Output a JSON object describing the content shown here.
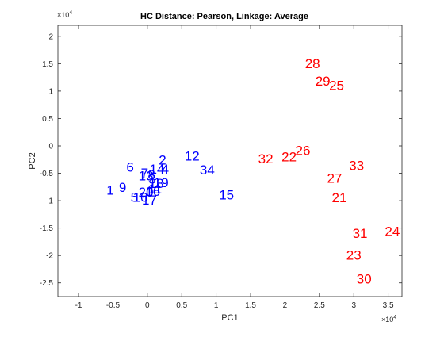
{
  "chart_data": {
    "type": "scatter",
    "title": "HC Distance: Pearson, Linkage: Average",
    "xlabel": "PC1",
    "ylabel": "PC2",
    "x_exponent": "×10",
    "x_exponent_power": "4",
    "y_exponent": "×10",
    "y_exponent_power": "4",
    "xlim": [
      -1.3,
      3.7
    ],
    "ylim": [
      -2.75,
      2.2
    ],
    "xticks": [
      -1,
      -0.5,
      0,
      0.5,
      1,
      1.5,
      2,
      2.5,
      3,
      3.5
    ],
    "xtick_labels": [
      "-1",
      "-0.5",
      "0",
      "0.5",
      "1",
      "1.5",
      "2",
      "2.5",
      "3",
      "3.5"
    ],
    "yticks": [
      -2.5,
      -2,
      -1.5,
      -1,
      -0.5,
      0,
      0.5,
      1,
      1.5,
      2
    ],
    "ytick_labels": [
      "-2.5",
      "-2",
      "-1.5",
      "-1",
      "-0.5",
      "0",
      "0.5",
      "1",
      "1.5",
      "2"
    ],
    "grid": false,
    "series": [
      {
        "color": "#0000ff",
        "points": [
          {
            "label": "1",
            "x": -0.54,
            "y": -0.81
          },
          {
            "label": "9",
            "x": -0.36,
            "y": -0.76
          },
          {
            "label": "6",
            "x": -0.25,
            "y": -0.39
          },
          {
            "label": "5",
            "x": -0.19,
            "y": -0.94
          },
          {
            "label": "10",
            "x": -0.1,
            "y": -0.94
          },
          {
            "label": "20",
            "x": -0.02,
            "y": -0.85
          },
          {
            "label": "17",
            "x": 0.03,
            "y": -0.99
          },
          {
            "label": "13",
            "x": -0.02,
            "y": -0.55
          },
          {
            "label": "7",
            "x": -0.04,
            "y": -0.5
          },
          {
            "label": "8",
            "x": 0.06,
            "y": -0.53
          },
          {
            "label": "3",
            "x": 0.07,
            "y": -0.61
          },
          {
            "label": "16",
            "x": 0.08,
            "y": -0.83
          },
          {
            "label": "11",
            "x": 0.11,
            "y": -0.79
          },
          {
            "label": "18",
            "x": 0.13,
            "y": -0.69
          },
          {
            "label": "14",
            "x": 0.14,
            "y": -0.43
          },
          {
            "label": "19",
            "x": 0.2,
            "y": -0.67
          },
          {
            "label": "2",
            "x": 0.22,
            "y": -0.26
          },
          {
            "label": "4",
            "x": 0.26,
            "y": -0.43
          },
          {
            "label": "12",
            "x": 0.65,
            "y": -0.19
          },
          {
            "label": "34",
            "x": 0.87,
            "y": -0.44
          },
          {
            "label": "15",
            "x": 1.15,
            "y": -0.9
          }
        ]
      },
      {
        "color": "#ff0000",
        "points": [
          {
            "label": "28",
            "x": 2.4,
            "y": 1.5
          },
          {
            "label": "29",
            "x": 2.55,
            "y": 1.18
          },
          {
            "label": "25",
            "x": 2.75,
            "y": 1.1
          },
          {
            "label": "26",
            "x": 2.26,
            "y": -0.09
          },
          {
            "label": "22",
            "x": 2.06,
            "y": -0.2
          },
          {
            "label": "32",
            "x": 1.72,
            "y": -0.24
          },
          {
            "label": "33",
            "x": 3.04,
            "y": -0.36
          },
          {
            "label": "27",
            "x": 2.72,
            "y": -0.59
          },
          {
            "label": "21",
            "x": 2.79,
            "y": -0.95
          },
          {
            "label": "31",
            "x": 3.09,
            "y": -1.6
          },
          {
            "label": "24",
            "x": 3.56,
            "y": -1.56
          },
          {
            "label": "23",
            "x": 3.0,
            "y": -2.0
          },
          {
            "label": "30",
            "x": 3.15,
            "y": -2.43
          }
        ]
      }
    ]
  }
}
